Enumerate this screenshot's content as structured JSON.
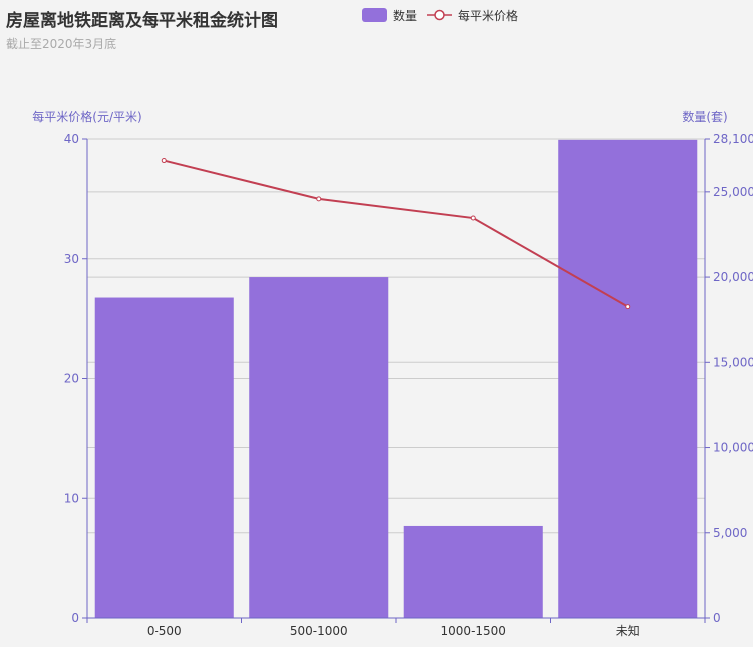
{
  "title": "房屋离地铁距离及每平米租金统计图",
  "subtitle": "截止至2020年3月底",
  "legend": {
    "bar_label": "数量",
    "line_label": "每平米价格"
  },
  "colors": {
    "bar": "#9370db",
    "line": "#c23f52",
    "axis": "#6e66c6",
    "grid": "#cccccc",
    "background": "#f3f3f3"
  },
  "chart_data": {
    "type": "bar",
    "categories": [
      "0-500",
      "500-1000",
      "1000-1500",
      "未知"
    ],
    "series": [
      {
        "name": "数量",
        "type": "bar",
        "axis": "right",
        "values": [
          18800,
          20000,
          5400,
          28050
        ]
      },
      {
        "name": "每平米价格",
        "type": "line",
        "axis": "left",
        "values": [
          38.2,
          35.0,
          33.4,
          26.0
        ]
      }
    ],
    "y_left": {
      "label": "每平米价格(元/平米)",
      "ylim": [
        0,
        40
      ],
      "ticks": [
        0,
        10,
        20,
        30,
        40
      ],
      "tick_labels": [
        "0",
        "10",
        "20",
        "30",
        "40"
      ]
    },
    "y_right": {
      "label": "数量(套)",
      "ylim": [
        0,
        28100
      ],
      "ticks": [
        0,
        5000,
        10000,
        15000,
        20000,
        25000,
        28100
      ],
      "tick_labels": [
        "0",
        "5,000",
        "10,000",
        "15,000",
        "20,000",
        "25,000",
        "28,100"
      ]
    },
    "grid": true,
    "legend_position": "top-center"
  }
}
